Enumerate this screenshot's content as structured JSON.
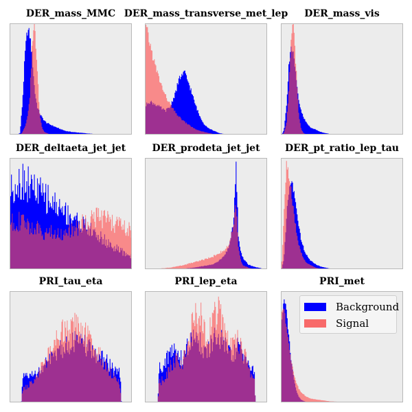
{
  "figure": {
    "colors": {
      "background_series": "#0000ff",
      "signal_series": "#ff4d4d",
      "overlap": "#8a0063",
      "panel_bg": "#ececec"
    },
    "legend": {
      "location": "upper-right of last panel",
      "entries": [
        {
          "label": "Background",
          "color": "#0000ff"
        },
        {
          "label": "Signal",
          "color": "#f86a6a"
        }
      ]
    }
  },
  "chart_data": [
    {
      "type": "area",
      "title": "DER_mass_MMC",
      "xlabel": "",
      "ylabel": "",
      "grid": false,
      "x": [
        0.0,
        0.04,
        0.08,
        0.1,
        0.12,
        0.14,
        0.16,
        0.18,
        0.2,
        0.22,
        0.24,
        0.26,
        0.28,
        0.3,
        0.32,
        0.34,
        0.36,
        0.4,
        0.45,
        0.5,
        0.6,
        0.7,
        0.8,
        1.0
      ],
      "series": [
        {
          "name": "Background",
          "values": [
            0.0,
            0.0,
            0.02,
            0.3,
            0.72,
            0.95,
            0.9,
            0.7,
            0.4,
            0.26,
            0.2,
            0.16,
            0.13,
            0.11,
            0.1,
            0.09,
            0.08,
            0.06,
            0.04,
            0.03,
            0.02,
            0.01,
            0.005,
            0.0
          ]
        },
        {
          "name": "Signal",
          "values": [
            0.0,
            0.0,
            0.0,
            0.03,
            0.08,
            0.16,
            0.36,
            0.82,
            1.0,
            0.6,
            0.2,
            0.07,
            0.03,
            0.02,
            0.01,
            0.01,
            0.01,
            0.0,
            0.0,
            0.0,
            0.0,
            0.0,
            0.0,
            0.0
          ]
        }
      ]
    },
    {
      "type": "area",
      "title": "DER_mass_transverse_met_lep",
      "xlabel": "",
      "ylabel": "",
      "grid": false,
      "x": [
        0.0,
        0.02,
        0.04,
        0.08,
        0.12,
        0.16,
        0.2,
        0.24,
        0.28,
        0.32,
        0.36,
        0.4,
        0.44,
        0.48,
        0.52,
        0.56,
        0.6,
        0.65,
        0.7,
        0.8,
        0.9,
        1.0
      ],
      "series": [
        {
          "name": "Background",
          "values": [
            0.26,
            0.3,
            0.3,
            0.28,
            0.25,
            0.22,
            0.25,
            0.37,
            0.52,
            0.56,
            0.45,
            0.3,
            0.18,
            0.1,
            0.06,
            0.04,
            0.02,
            0.01,
            0.005,
            0.003,
            0.001,
            0.0
          ]
        },
        {
          "name": "Signal",
          "values": [
            0.98,
            0.9,
            0.8,
            0.62,
            0.48,
            0.36,
            0.28,
            0.21,
            0.16,
            0.12,
            0.09,
            0.06,
            0.04,
            0.03,
            0.02,
            0.01,
            0.01,
            0.0,
            0.0,
            0.0,
            0.0,
            0.0
          ]
        }
      ]
    },
    {
      "type": "area",
      "title": "DER_mass_vis",
      "xlabel": "",
      "ylabel": "",
      "grid": false,
      "x": [
        0.0,
        0.02,
        0.04,
        0.06,
        0.08,
        0.1,
        0.12,
        0.14,
        0.16,
        0.18,
        0.2,
        0.22,
        0.24,
        0.28,
        0.32,
        0.36,
        0.4,
        0.5,
        0.6,
        0.8,
        1.0
      ],
      "series": [
        {
          "name": "Background",
          "values": [
            0.0,
            0.05,
            0.25,
            0.65,
            0.8,
            0.7,
            0.5,
            0.32,
            0.22,
            0.16,
            0.12,
            0.09,
            0.07,
            0.05,
            0.03,
            0.02,
            0.01,
            0.005,
            0.002,
            0.0,
            0.0
          ]
        },
        {
          "name": "Signal",
          "values": [
            0.0,
            0.02,
            0.1,
            0.4,
            0.9,
            0.98,
            0.6,
            0.2,
            0.06,
            0.02,
            0.01,
            0.005,
            0.0,
            0.0,
            0.0,
            0.0,
            0.0,
            0.0,
            0.0,
            0.0,
            0.0
          ]
        }
      ]
    },
    {
      "type": "area",
      "title": "DER_deltaeta_jet_jet",
      "xlabel": "",
      "ylabel": "",
      "grid": false,
      "x": [
        0.0,
        0.05,
        0.1,
        0.15,
        0.2,
        0.25,
        0.3,
        0.35,
        0.4,
        0.45,
        0.5,
        0.55,
        0.6,
        0.65,
        0.7,
        0.75,
        0.8,
        0.85,
        0.9,
        0.95,
        1.0
      ],
      "series": [
        {
          "name": "Background",
          "values": [
            0.72,
            0.78,
            0.8,
            0.77,
            0.72,
            0.68,
            0.64,
            0.6,
            0.56,
            0.52,
            0.48,
            0.44,
            0.4,
            0.36,
            0.32,
            0.28,
            0.24,
            0.2,
            0.17,
            0.14,
            0.12
          ]
        },
        {
          "name": "Signal",
          "values": [
            0.42,
            0.44,
            0.42,
            0.4,
            0.37,
            0.35,
            0.34,
            0.33,
            0.32,
            0.33,
            0.35,
            0.38,
            0.42,
            0.46,
            0.48,
            0.46,
            0.44,
            0.42,
            0.4,
            0.37,
            0.34
          ]
        }
      ]
    },
    {
      "type": "area",
      "title": "DER_prodeta_jet_jet",
      "xlabel": "",
      "ylabel": "",
      "grid": false,
      "x": [
        0.0,
        0.1,
        0.2,
        0.3,
        0.4,
        0.5,
        0.55,
        0.6,
        0.64,
        0.68,
        0.7,
        0.72,
        0.74,
        0.76,
        0.78,
        0.8,
        0.84,
        0.88,
        0.92,
        0.96,
        1.0
      ],
      "series": [
        {
          "name": "Background",
          "values": [
            0.0,
            0.0,
            0.0,
            0.01,
            0.02,
            0.04,
            0.05,
            0.08,
            0.12,
            0.2,
            0.3,
            0.45,
            0.95,
            0.3,
            0.16,
            0.1,
            0.05,
            0.03,
            0.02,
            0.01,
            0.01
          ]
        },
        {
          "name": "Signal",
          "values": [
            0.0,
            0.01,
            0.02,
            0.04,
            0.07,
            0.1,
            0.12,
            0.15,
            0.17,
            0.22,
            0.3,
            0.4,
            0.6,
            0.2,
            0.08,
            0.04,
            0.02,
            0.01,
            0.0,
            0.0,
            0.0
          ]
        }
      ]
    },
    {
      "type": "area",
      "title": "DER_pt_ratio_lep_tau",
      "xlabel": "",
      "ylabel": "",
      "grid": false,
      "x": [
        0.0,
        0.02,
        0.04,
        0.06,
        0.08,
        0.1,
        0.12,
        0.14,
        0.16,
        0.18,
        0.2,
        0.24,
        0.28,
        0.32,
        0.36,
        0.4,
        0.5,
        0.6,
        0.8,
        1.0
      ],
      "series": [
        {
          "name": "Background",
          "values": [
            0.0,
            0.1,
            0.45,
            0.72,
            0.8,
            0.72,
            0.55,
            0.4,
            0.28,
            0.2,
            0.14,
            0.08,
            0.05,
            0.03,
            0.02,
            0.01,
            0.005,
            0.002,
            0.0,
            0.0
          ]
        },
        {
          "name": "Signal",
          "values": [
            0.0,
            0.5,
            0.93,
            0.85,
            0.7,
            0.52,
            0.36,
            0.24,
            0.16,
            0.1,
            0.07,
            0.04,
            0.02,
            0.01,
            0.01,
            0.0,
            0.0,
            0.0,
            0.0,
            0.0
          ]
        }
      ]
    },
    {
      "type": "area",
      "title": "PRI_tau_eta",
      "xlabel": "",
      "ylabel": "",
      "grid": false,
      "x": [
        0.0,
        0.09,
        0.1,
        0.15,
        0.2,
        0.25,
        0.3,
        0.35,
        0.4,
        0.45,
        0.5,
        0.55,
        0.6,
        0.65,
        0.7,
        0.75,
        0.8,
        0.85,
        0.9,
        0.91,
        1.0
      ],
      "series": [
        {
          "name": "Background",
          "values": [
            0.0,
            0.0,
            0.22,
            0.24,
            0.26,
            0.3,
            0.36,
            0.42,
            0.48,
            0.52,
            0.55,
            0.55,
            0.52,
            0.48,
            0.44,
            0.4,
            0.36,
            0.3,
            0.26,
            0.0,
            0.0
          ]
        },
        {
          "name": "Signal",
          "values": [
            0.0,
            0.0,
            0.12,
            0.16,
            0.22,
            0.3,
            0.4,
            0.5,
            0.6,
            0.66,
            0.7,
            0.7,
            0.64,
            0.56,
            0.48,
            0.4,
            0.32,
            0.24,
            0.16,
            0.0,
            0.0
          ]
        }
      ]
    },
    {
      "type": "area",
      "title": "PRI_lep_eta",
      "xlabel": "",
      "ylabel": "",
      "grid": false,
      "x": [
        0.0,
        0.1,
        0.11,
        0.15,
        0.2,
        0.25,
        0.3,
        0.35,
        0.4,
        0.45,
        0.5,
        0.55,
        0.6,
        0.65,
        0.7,
        0.75,
        0.8,
        0.85,
        0.89,
        0.9,
        1.0
      ],
      "series": [
        {
          "name": "Background",
          "values": [
            0.0,
            0.0,
            0.3,
            0.36,
            0.44,
            0.48,
            0.38,
            0.52,
            0.58,
            0.55,
            0.42,
            0.56,
            0.58,
            0.52,
            0.4,
            0.5,
            0.44,
            0.34,
            0.26,
            0.0,
            0.0
          ]
        },
        {
          "name": "Signal",
          "values": [
            0.0,
            0.0,
            0.18,
            0.22,
            0.32,
            0.4,
            0.36,
            0.56,
            0.76,
            0.78,
            0.56,
            0.78,
            0.8,
            0.64,
            0.5,
            0.56,
            0.46,
            0.3,
            0.2,
            0.0,
            0.0
          ]
        }
      ]
    },
    {
      "type": "area",
      "title": "PRI_met",
      "xlabel": "",
      "ylabel": "",
      "grid": false,
      "x": [
        0.0,
        0.02,
        0.04,
        0.06,
        0.08,
        0.1,
        0.12,
        0.14,
        0.16,
        0.2,
        0.24,
        0.3,
        0.4,
        0.5,
        0.6,
        0.8,
        1.0
      ],
      "series": [
        {
          "name": "Background",
          "values": [
            0.7,
            0.95,
            0.85,
            0.6,
            0.38,
            0.22,
            0.12,
            0.06,
            0.03,
            0.01,
            0.005,
            0.0,
            0.0,
            0.0,
            0.0,
            0.0,
            0.0
          ]
        },
        {
          "name": "Signal",
          "values": [
            0.85,
            0.85,
            0.7,
            0.52,
            0.38,
            0.27,
            0.19,
            0.13,
            0.1,
            0.06,
            0.04,
            0.03,
            0.015,
            0.01,
            0.005,
            0.0,
            0.0
          ]
        }
      ]
    }
  ]
}
